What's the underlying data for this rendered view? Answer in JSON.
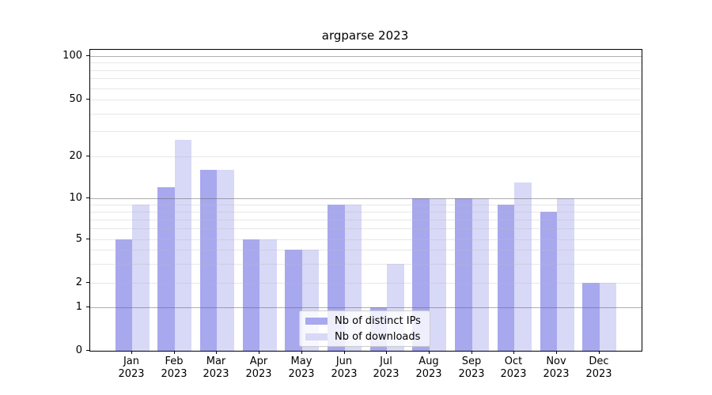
{
  "chart_data": {
    "type": "bar",
    "title": "argparse 2023",
    "categories": [
      "Jan 2023",
      "Feb 2023",
      "Mar 2023",
      "Apr 2023",
      "May 2023",
      "Jun 2023",
      "Jul 2023",
      "Aug 2023",
      "Sep 2023",
      "Oct 2023",
      "Nov 2023",
      "Dec 2023"
    ],
    "series": [
      {
        "name": "Nb of distinct IPs",
        "color": "#a8a8ee",
        "values": [
          5,
          12,
          16,
          5,
          4,
          9,
          1,
          10,
          10,
          9,
          8,
          2
        ]
      },
      {
        "name": "Nb of downloads",
        "color": "#d8d8f7",
        "values": [
          9,
          26,
          16,
          5,
          4,
          9,
          3,
          10,
          10,
          13,
          10,
          2
        ]
      }
    ],
    "y_ticks": [
      0,
      1,
      2,
      5,
      10,
      20,
      50,
      100
    ],
    "ylim": [
      0,
      100
    ],
    "yscale": "log-like with linear segment below 1",
    "xlabel": "",
    "ylabel": "",
    "grid": true,
    "legend_position": "lower center"
  },
  "colors": {
    "bar_ips": "#a8a8ee",
    "bar_downloads": "#d8d8f7",
    "grid_major": "#b3b3b3",
    "grid_minor": "#e8e8e8",
    "spine": "#000000",
    "legend_border": "#cccccc",
    "legend_background": "rgba(255,255,255,0.8)"
  }
}
